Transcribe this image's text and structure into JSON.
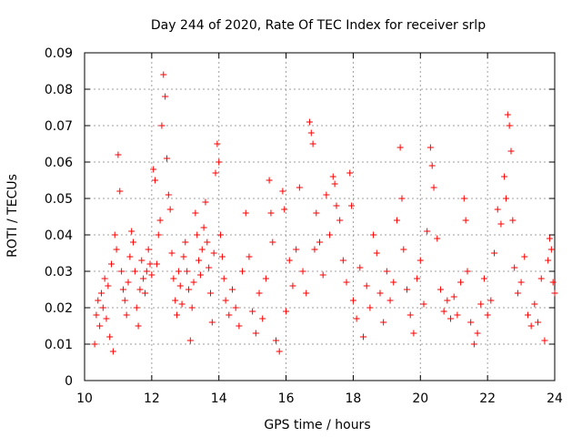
{
  "chart_data": {
    "type": "scatter",
    "title": "Day 244 of 2020, Rate Of TEC Index for receiver srlp",
    "xlabel": "GPS time / hours",
    "ylabel": "ROTI / TECUs",
    "xlim": [
      10,
      24
    ],
    "ylim": [
      0,
      0.09
    ],
    "x_ticks": [
      10,
      12,
      14,
      16,
      18,
      20,
      22,
      24
    ],
    "x_tick_labels": [
      "10",
      "12",
      "14",
      "16",
      "18",
      "20",
      "22",
      "24"
    ],
    "y_ticks": [
      0,
      0.01,
      0.02,
      0.03,
      0.04,
      0.05,
      0.06,
      0.07,
      0.08,
      0.09
    ],
    "y_tick_labels": [
      "0",
      "0.01",
      "0.02",
      "0.03",
      "0.04",
      "0.05",
      "0.06",
      "0.07",
      "0.08",
      "0.09"
    ],
    "grid": true,
    "marker": "+",
    "color": "#ff0000",
    "series": [
      {
        "name": "ROTI",
        "points": [
          [
            10.3,
            0.01
          ],
          [
            10.35,
            0.018
          ],
          [
            10.4,
            0.022
          ],
          [
            10.45,
            0.015
          ],
          [
            10.5,
            0.024
          ],
          [
            10.55,
            0.02
          ],
          [
            10.6,
            0.028
          ],
          [
            10.65,
            0.017
          ],
          [
            10.7,
            0.026
          ],
          [
            10.75,
            0.012
          ],
          [
            10.8,
            0.032
          ],
          [
            10.85,
            0.008
          ],
          [
            10.9,
            0.04
          ],
          [
            10.95,
            0.036
          ],
          [
            11.0,
            0.062
          ],
          [
            11.05,
            0.052
          ],
          [
            11.1,
            0.03
          ],
          [
            11.15,
            0.025
          ],
          [
            11.2,
            0.022
          ],
          [
            11.25,
            0.018
          ],
          [
            11.3,
            0.027
          ],
          [
            11.35,
            0.034
          ],
          [
            11.4,
            0.041
          ],
          [
            11.45,
            0.038
          ],
          [
            11.5,
            0.03
          ],
          [
            11.55,
            0.02
          ],
          [
            11.6,
            0.015
          ],
          [
            11.65,
            0.025
          ],
          [
            11.7,
            0.033
          ],
          [
            11.75,
            0.028
          ],
          [
            11.8,
            0.024
          ],
          [
            11.85,
            0.03
          ],
          [
            11.9,
            0.036
          ],
          [
            11.95,
            0.032
          ],
          [
            12.0,
            0.029
          ],
          [
            12.05,
            0.058
          ],
          [
            12.1,
            0.055
          ],
          [
            12.15,
            0.032
          ],
          [
            12.2,
            0.04
          ],
          [
            12.25,
            0.044
          ],
          [
            12.3,
            0.07
          ],
          [
            12.35,
            0.084
          ],
          [
            12.4,
            0.078
          ],
          [
            12.45,
            0.061
          ],
          [
            12.5,
            0.051
          ],
          [
            12.55,
            0.047
          ],
          [
            12.6,
            0.035
          ],
          [
            12.65,
            0.028
          ],
          [
            12.7,
            0.022
          ],
          [
            12.75,
            0.018
          ],
          [
            12.8,
            0.03
          ],
          [
            12.85,
            0.026
          ],
          [
            12.9,
            0.021
          ],
          [
            12.95,
            0.034
          ],
          [
            13.0,
            0.038
          ],
          [
            13.05,
            0.03
          ],
          [
            13.1,
            0.025
          ],
          [
            13.15,
            0.011
          ],
          [
            13.2,
            0.02
          ],
          [
            13.25,
            0.027
          ],
          [
            13.3,
            0.046
          ],
          [
            13.35,
            0.04
          ],
          [
            13.4,
            0.033
          ],
          [
            13.45,
            0.029
          ],
          [
            13.5,
            0.036
          ],
          [
            13.55,
            0.042
          ],
          [
            13.6,
            0.049
          ],
          [
            13.65,
            0.038
          ],
          [
            13.7,
            0.031
          ],
          [
            13.75,
            0.024
          ],
          [
            13.8,
            0.016
          ],
          [
            13.85,
            0.035
          ],
          [
            13.9,
            0.057
          ],
          [
            13.95,
            0.065
          ],
          [
            14.0,
            0.06
          ],
          [
            14.05,
            0.04
          ],
          [
            14.1,
            0.034
          ],
          [
            14.15,
            0.028
          ],
          [
            14.2,
            0.022
          ],
          [
            14.3,
            0.018
          ],
          [
            14.4,
            0.025
          ],
          [
            14.5,
            0.02
          ],
          [
            14.6,
            0.015
          ],
          [
            14.7,
            0.03
          ],
          [
            14.8,
            0.046
          ],
          [
            14.9,
            0.034
          ],
          [
            15.0,
            0.019
          ],
          [
            15.1,
            0.013
          ],
          [
            15.2,
            0.024
          ],
          [
            15.3,
            0.017
          ],
          [
            15.4,
            0.028
          ],
          [
            15.5,
            0.055
          ],
          [
            15.55,
            0.046
          ],
          [
            15.6,
            0.038
          ],
          [
            15.7,
            0.011
          ],
          [
            15.8,
            0.008
          ],
          [
            15.9,
            0.052
          ],
          [
            15.95,
            0.047
          ],
          [
            16.0,
            0.019
          ],
          [
            16.1,
            0.033
          ],
          [
            16.2,
            0.026
          ],
          [
            16.3,
            0.036
          ],
          [
            16.4,
            0.053
          ],
          [
            16.5,
            0.03
          ],
          [
            16.6,
            0.024
          ],
          [
            16.7,
            0.071
          ],
          [
            16.75,
            0.068
          ],
          [
            16.8,
            0.065
          ],
          [
            16.85,
            0.036
          ],
          [
            16.9,
            0.046
          ],
          [
            17.0,
            0.038
          ],
          [
            17.1,
            0.029
          ],
          [
            17.2,
            0.051
          ],
          [
            17.3,
            0.04
          ],
          [
            17.4,
            0.056
          ],
          [
            17.45,
            0.054
          ],
          [
            17.5,
            0.048
          ],
          [
            17.6,
            0.044
          ],
          [
            17.7,
            0.033
          ],
          [
            17.8,
            0.027
          ],
          [
            17.9,
            0.057
          ],
          [
            17.95,
            0.048
          ],
          [
            18.0,
            0.022
          ],
          [
            18.1,
            0.017
          ],
          [
            18.2,
            0.031
          ],
          [
            18.3,
            0.012
          ],
          [
            18.4,
            0.026
          ],
          [
            18.5,
            0.02
          ],
          [
            18.6,
            0.04
          ],
          [
            18.7,
            0.035
          ],
          [
            18.8,
            0.024
          ],
          [
            18.9,
            0.016
          ],
          [
            19.0,
            0.03
          ],
          [
            19.1,
            0.022
          ],
          [
            19.2,
            0.027
          ],
          [
            19.3,
            0.044
          ],
          [
            19.4,
            0.064
          ],
          [
            19.45,
            0.05
          ],
          [
            19.5,
            0.036
          ],
          [
            19.6,
            0.025
          ],
          [
            19.7,
            0.018
          ],
          [
            19.8,
            0.013
          ],
          [
            19.9,
            0.028
          ],
          [
            20.0,
            0.033
          ],
          [
            20.1,
            0.021
          ],
          [
            20.2,
            0.041
          ],
          [
            20.3,
            0.064
          ],
          [
            20.35,
            0.059
          ],
          [
            20.4,
            0.053
          ],
          [
            20.5,
            0.039
          ],
          [
            20.6,
            0.025
          ],
          [
            20.7,
            0.019
          ],
          [
            20.8,
            0.022
          ],
          [
            20.9,
            0.017
          ],
          [
            21.0,
            0.023
          ],
          [
            21.1,
            0.018
          ],
          [
            21.2,
            0.027
          ],
          [
            21.3,
            0.05
          ],
          [
            21.35,
            0.044
          ],
          [
            21.4,
            0.03
          ],
          [
            21.5,
            0.016
          ],
          [
            21.6,
            0.01
          ],
          [
            21.7,
            0.013
          ],
          [
            21.8,
            0.021
          ],
          [
            21.9,
            0.028
          ],
          [
            22.0,
            0.018
          ],
          [
            22.1,
            0.022
          ],
          [
            22.2,
            0.035
          ],
          [
            22.3,
            0.047
          ],
          [
            22.4,
            0.043
          ],
          [
            22.5,
            0.056
          ],
          [
            22.55,
            0.05
          ],
          [
            22.6,
            0.073
          ],
          [
            22.65,
            0.07
          ],
          [
            22.7,
            0.063
          ],
          [
            22.75,
            0.044
          ],
          [
            22.8,
            0.031
          ],
          [
            22.9,
            0.024
          ],
          [
            23.0,
            0.027
          ],
          [
            23.1,
            0.034
          ],
          [
            23.2,
            0.018
          ],
          [
            23.3,
            0.015
          ],
          [
            23.4,
            0.021
          ],
          [
            23.5,
            0.016
          ],
          [
            23.6,
            0.028
          ],
          [
            23.7,
            0.011
          ],
          [
            23.8,
            0.033
          ],
          [
            23.85,
            0.039
          ],
          [
            23.9,
            0.036
          ],
          [
            23.95,
            0.027
          ],
          [
            24.0,
            0.024
          ]
        ]
      }
    ]
  }
}
